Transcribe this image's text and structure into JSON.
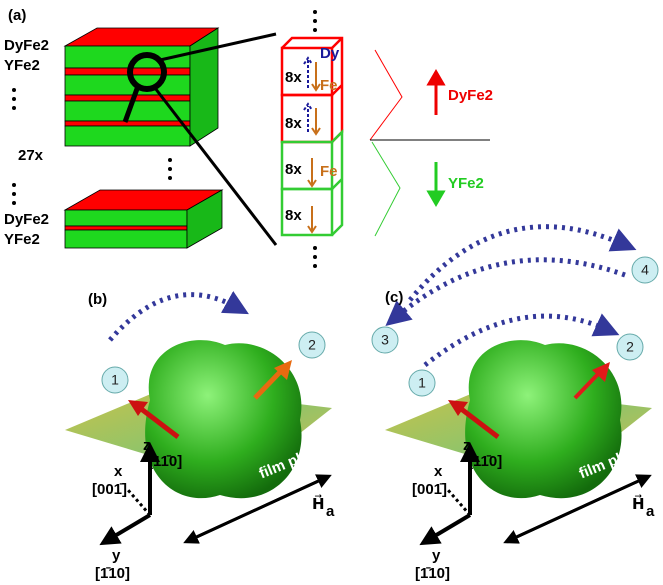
{
  "panel_a": {
    "label": "(a)",
    "top_labels": [
      "DyFe2",
      "YFe2"
    ],
    "repeat": "27x",
    "bottom_labels": [
      "DyFe2",
      "YFe2"
    ],
    "cells": [
      "8x",
      "8x",
      "8x",
      "8x"
    ],
    "dy": "Dy",
    "fe": [
      "Fe",
      "Fe"
    ],
    "dyfe2": "DyFe2",
    "yfe2": "YFe2"
  },
  "panel_b": {
    "label": "(b)",
    "states": [
      "1",
      "2"
    ]
  },
  "panel_c": {
    "label": "(c)",
    "states": [
      "1",
      "2",
      "3",
      "4"
    ]
  },
  "axes": {
    "z": "z",
    "z_dir": "[11̄0]",
    "x": "x",
    "x_dir": "[001̄]",
    "y": "y",
    "y_dir": "[1̄10]",
    "field": "H⃗",
    "field_sub": "a",
    "plane": "film plane"
  }
}
